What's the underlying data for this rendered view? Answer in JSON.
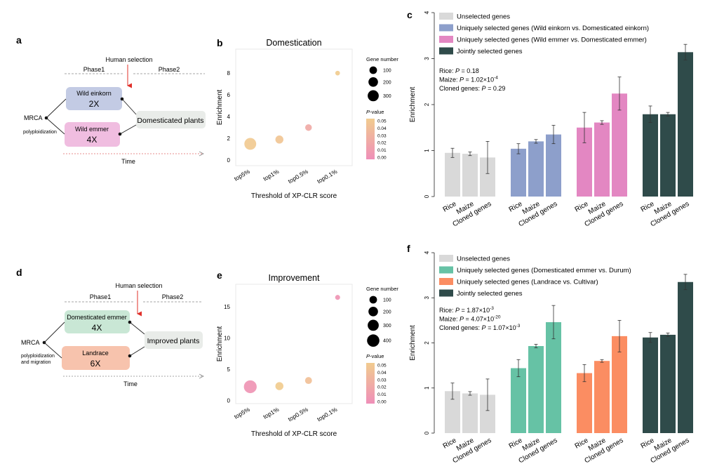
{
  "panels": {
    "a": {
      "letter": "a",
      "human_selection": "Human selection",
      "phase1": "Phase1",
      "phase2": "Phase2",
      "origin": "MRCA",
      "event": [
        "polyploidization"
      ],
      "box1": {
        "name": "Wild einkorn",
        "ploidy": "2X",
        "color": "#c3cbe4"
      },
      "box2": {
        "name": "Wild emmer",
        "ploidy": "4X",
        "color": "#f0bde0"
      },
      "target": "Domesticated plants",
      "time": "Time"
    },
    "d": {
      "letter": "d",
      "human_selection": "Human selection",
      "phase1": "Phase1",
      "phase2": "Phase2",
      "origin": "MRCA",
      "event": [
        "polyploidization",
        "and migration"
      ],
      "box1": {
        "name": "Domesticated emmer",
        "ploidy": "4X",
        "color": "#c9e7d5"
      },
      "box2": {
        "name": "Landrace",
        "ploidy": "6X",
        "color": "#f7c3ad"
      },
      "target": "Improved plants",
      "time": "Time"
    },
    "b": {
      "letter": "b"
    },
    "e": {
      "letter": "e"
    },
    "c": {
      "letter": "c",
      "stats": [
        {
          "prefix": "Rice: ",
          "p": "P",
          "rest": " = 0.18",
          "sup": ""
        },
        {
          "prefix": "Maize: ",
          "p": "P",
          "rest": " = 1.02×10",
          "sup": "-4"
        },
        {
          "prefix": "Cloned genes: ",
          "p": "P",
          "rest": " = 0.29",
          "sup": ""
        }
      ]
    },
    "f": {
      "letter": "f",
      "stats": [
        {
          "prefix": "Rice: ",
          "p": "P",
          "rest": " = 1.87×10",
          "sup": "-3"
        },
        {
          "prefix": "Maize: ",
          "p": "P",
          "rest": " = 4.07×10",
          "sup": "-20"
        },
        {
          "prefix": "Cloned genes: ",
          "p": "P",
          "rest": " = 1.07×10",
          "sup": "-3"
        }
      ]
    }
  },
  "chart_data": [
    {
      "id": "b",
      "type": "scatter",
      "title": "Domestication",
      "xlabel": "Threshold of XP-CLR score",
      "ylabel": "Enrichment",
      "categories": [
        "top5%",
        "top1%",
        "top0.5%",
        "top0.1%"
      ],
      "ylim": [
        -0.5,
        10.2
      ],
      "yticks": [
        0,
        2,
        4,
        6,
        8
      ],
      "values": [
        1.5,
        1.9,
        3.0,
        8.0
      ],
      "gene_numbers": [
        360,
        120,
        65,
        15
      ],
      "p_values": [
        0.048,
        0.044,
        0.022,
        0.052
      ],
      "size_legend": {
        "title": "Gene number",
        "values": [
          100,
          200,
          300
        ]
      },
      "color_legend": {
        "title": "-value",
        "title_italic": "P",
        "ticks": [
          "0.05",
          "0.04",
          "0.03",
          "0.02",
          "0.01",
          "0.00"
        ],
        "colors": [
          "#f1cc8f",
          "#ef8fb8"
        ]
      }
    },
    {
      "id": "e",
      "type": "scatter",
      "title": "Improvement",
      "xlabel": "Threshold of XP-CLR score",
      "ylabel": "Enrichment",
      "categories": [
        "top5%",
        "top1%",
        "top0.5%",
        "top0.1%"
      ],
      "ylim": [
        -0.5,
        18.6
      ],
      "yticks": [
        0,
        5,
        10,
        15
      ],
      "values": [
        2.2,
        2.3,
        3.2,
        16.5
      ],
      "gene_numbers": [
        440,
        120,
        75,
        20
      ],
      "p_values": [
        0.005,
        0.05,
        0.04,
        0.005
      ],
      "size_legend": {
        "title": "Gene number",
        "values": [
          100,
          200,
          300,
          400
        ]
      },
      "color_legend": {
        "title": "-value",
        "title_italic": "P",
        "ticks": [
          "0.05",
          "0.04",
          "0.03",
          "0.02",
          "0.01",
          "0.00"
        ],
        "colors": [
          "#f1cc8f",
          "#ef8fb8"
        ]
      }
    },
    {
      "id": "c",
      "type": "bar",
      "ylabel": "Enrichment",
      "ylim": [
        0,
        4
      ],
      "yticks": [
        0,
        1,
        2,
        3,
        4
      ],
      "categories": [
        "Rice",
        "Maize",
        "Cloned genes"
      ],
      "series": [
        {
          "name": "Unselected genes",
          "color": "#d9d9d9",
          "values": [
            0.95,
            0.93,
            0.85
          ],
          "errors": [
            0.1,
            0.04,
            0.35
          ]
        },
        {
          "name": "Uniquely selected genes (Wild einkorn vs. Domesticated einkorn)",
          "color": "#8d9fcb",
          "values": [
            1.04,
            1.2,
            1.35
          ],
          "errors": [
            0.11,
            0.04,
            0.2
          ]
        },
        {
          "name": "Uniquely selected genes (Wild emmer vs. Domesticated emmer)",
          "color": "#e387c2",
          "values": [
            1.5,
            1.61,
            2.24
          ],
          "errors": [
            0.33,
            0.04,
            0.36
          ]
        },
        {
          "name": "Jointly selected genes",
          "color": "#2f4b4a",
          "values": [
            1.79,
            1.79,
            3.14
          ],
          "errors": [
            0.18,
            0.04,
            0.17
          ]
        }
      ]
    },
    {
      "id": "f",
      "type": "bar",
      "ylabel": "Enrichment",
      "ylim": [
        0,
        4
      ],
      "yticks": [
        0,
        1,
        2,
        3,
        4
      ],
      "categories": [
        "Rice",
        "Maize",
        "Cloned genes"
      ],
      "series": [
        {
          "name": "Unselected genes",
          "color": "#d9d9d9",
          "values": [
            0.93,
            0.88,
            0.85
          ],
          "errors": [
            0.18,
            0.04,
            0.35
          ]
        },
        {
          "name": "Uniquely selected genes (Domesticated emmer vs. Durum)",
          "color": "#66c2a5",
          "values": [
            1.44,
            1.93,
            2.46
          ],
          "errors": [
            0.19,
            0.04,
            0.37
          ]
        },
        {
          "name": "Uniquely selected genes (Landrace vs. Cultivar)",
          "color": "#fb8d62",
          "values": [
            1.33,
            1.6,
            2.15
          ],
          "errors": [
            0.19,
            0.03,
            0.35
          ]
        },
        {
          "name": "Jointly selected genes",
          "color": "#2f4b4a",
          "values": [
            2.12,
            2.18,
            3.35
          ],
          "errors": [
            0.11,
            0.04,
            0.17
          ]
        }
      ]
    }
  ]
}
